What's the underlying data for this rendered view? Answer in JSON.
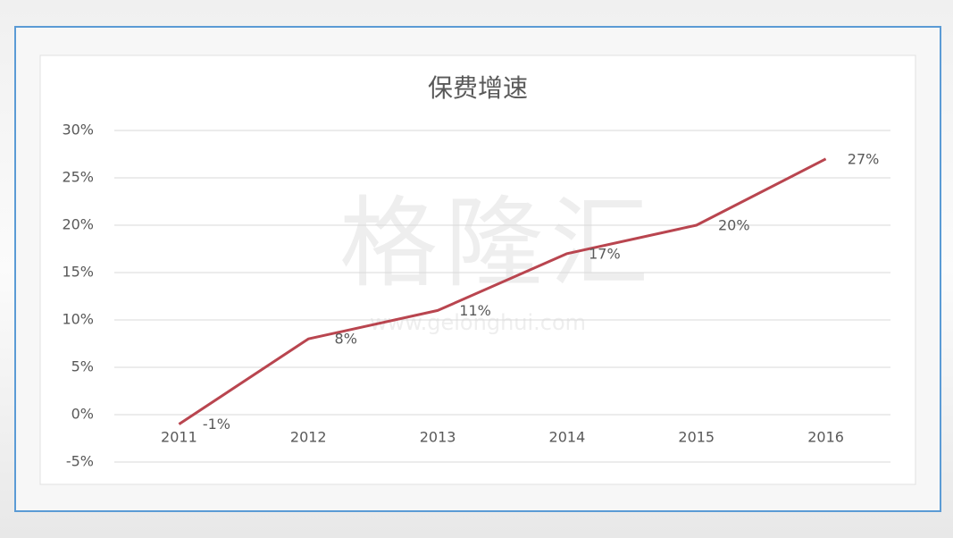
{
  "chart_data": {
    "type": "line",
    "title": "保费增速",
    "watermark": [
      "格隆汇",
      "www.gelonghui.com"
    ],
    "categories": [
      "2011",
      "2012",
      "2013",
      "2014",
      "2015",
      "2016"
    ],
    "series": [
      {
        "color": "#b9454f",
        "values": [
          -1,
          8,
          11,
          17,
          20,
          27
        ],
        "value_labels": [
          "-1%",
          "8%",
          "11%",
          "17%",
          "20%",
          "27%"
        ]
      }
    ],
    "ylim": [
      -5,
      30
    ],
    "yticks": [
      {
        "value": -5,
        "label": "-5%"
      },
      {
        "value": 0,
        "label": "0%"
      },
      {
        "value": 5,
        "label": "5%"
      },
      {
        "value": 10,
        "label": "10%"
      },
      {
        "value": 15,
        "label": "15%"
      },
      {
        "value": 20,
        "label": "20%"
      },
      {
        "value": 25,
        "label": "25%"
      },
      {
        "value": 30,
        "label": "30%"
      }
    ],
    "grid": true
  }
}
